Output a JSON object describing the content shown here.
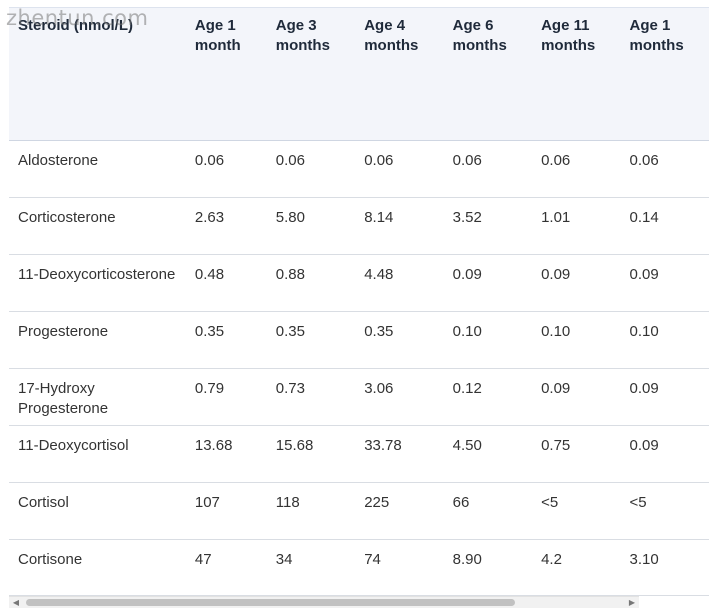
{
  "watermark": "zhentun.com",
  "table": {
    "headers": {
      "steroid": "Steroid (nmol/L)",
      "a": "Age 1 month",
      "b": "Age 3 months",
      "c": "Age 4 months",
      "d": "Age 6 months",
      "e": "Age 11 months",
      "f": "Age 1 months"
    },
    "rows": [
      {
        "name": "Aldosterone",
        "a": "0.06",
        "b": "0.06",
        "c": "0.06",
        "d": "0.06",
        "e": "0.06",
        "f": "0.06"
      },
      {
        "name": "Corticosterone",
        "a": "2.63",
        "b": "5.80",
        "c": "8.14",
        "d": "3.52",
        "e": "1.01",
        "f": "0.14"
      },
      {
        "name": "11-Deoxycorticosterone",
        "a": "0.48",
        "b": "0.88",
        "c": "4.48",
        "d": "0.09",
        "e": "0.09",
        "f": "0.09"
      },
      {
        "name": "Progesterone",
        "a": "0.35",
        "b": "0.35",
        "c": "0.35",
        "d": "0.10",
        "e": "0.10",
        "f": "0.10"
      },
      {
        "name": "17-Hydroxy Progesterone",
        "a": "0.79",
        "b": "0.73",
        "c": "3.06",
        "d": "0.12",
        "e": "0.09",
        "f": "0.09"
      },
      {
        "name": "11-Deoxycortisol",
        "a": "13.68",
        "b": "15.68",
        "c": "33.78",
        "d": "4.50",
        "e": "0.75",
        "f": "0.09"
      },
      {
        "name": "Cortisol",
        "a": "107",
        "b": "118",
        "c": "225",
        "d": "66",
        "e": "<5",
        "f": "<5"
      },
      {
        "name": "Cortisone",
        "a": "47",
        "b": "34",
        "c": "74",
        "d": "8.90",
        "e": "4.2",
        "f": "3.10"
      }
    ]
  },
  "scrollbar": {
    "left_arrow_icon": "triangle-left-icon",
    "right_arrow_icon": "triangle-right-icon",
    "position_fraction": 0.0,
    "visible_fraction": 0.82
  }
}
